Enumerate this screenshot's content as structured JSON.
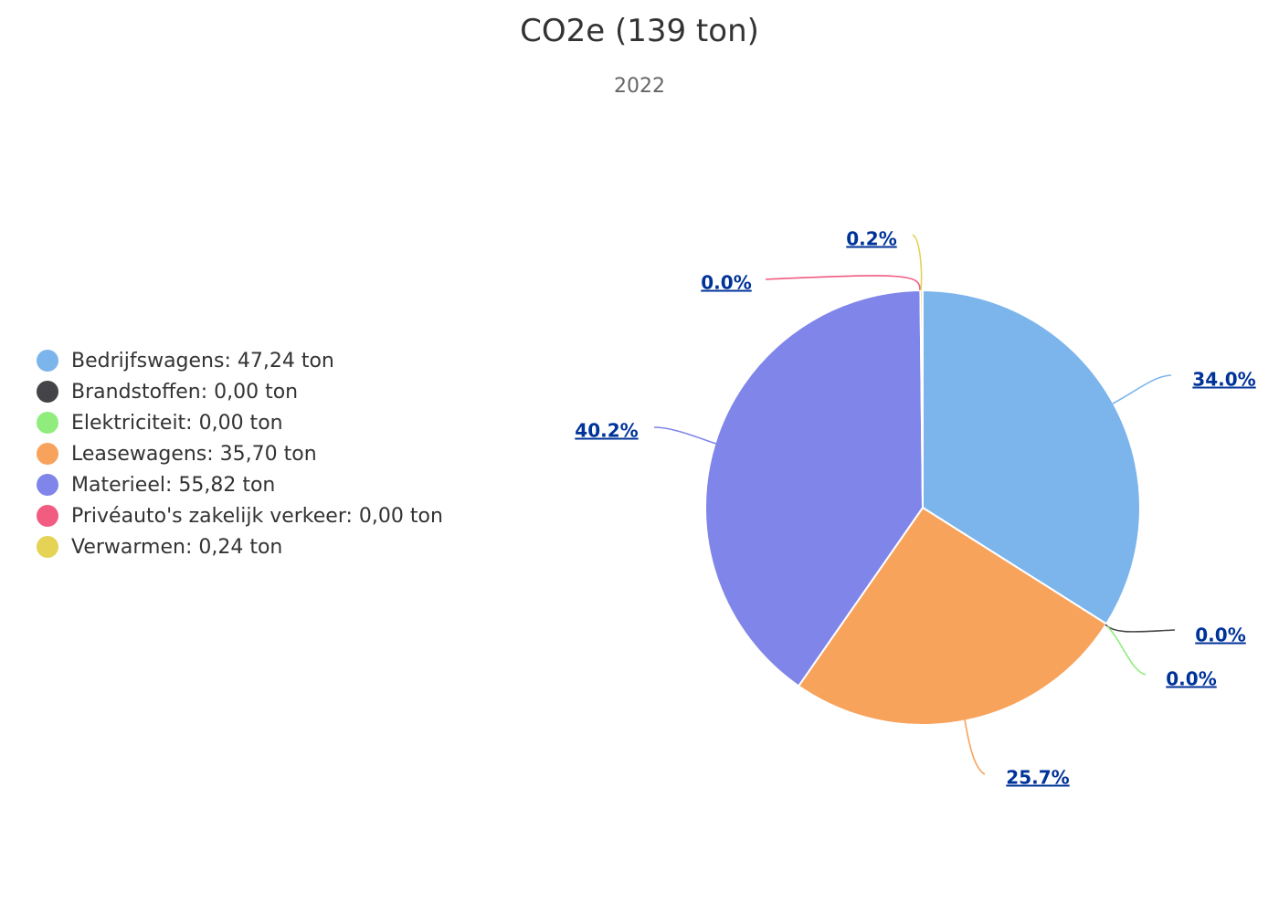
{
  "chart_data": {
    "type": "pie",
    "title": "CO2e (139 ton)",
    "subtitle": "2022",
    "legend_position": "left",
    "slices": [
      {
        "name": "Bedrijfswagens",
        "legend": "Bedrijfswagens: 47,24 ton",
        "value": 47.24,
        "label": "34.0%",
        "color": "#7cb5ec"
      },
      {
        "name": "Brandstoffen",
        "legend": "Brandstoffen: 0,00 ton",
        "value": 0.0,
        "label": "0.0%",
        "color": "#434348"
      },
      {
        "name": "Elektriciteit",
        "legend": "Elektriciteit: 0,00 ton",
        "value": 0.0,
        "label": "0.0%",
        "color": "#90ed7d"
      },
      {
        "name": "Leasewagens",
        "legend": "Leasewagens: 35,70 ton",
        "value": 35.7,
        "label": "25.7%",
        "color": "#f7a35c"
      },
      {
        "name": "Materieel",
        "legend": "Materieel: 55,82 ton",
        "value": 55.82,
        "label": "40.2%",
        "color": "#8085e9"
      },
      {
        "name": "Privéauto's zakelijk verkeer",
        "legend": "Privéauto's zakelijk verkeer: 0,00 ton",
        "value": 0.0,
        "label": "0.0%",
        "color": "#f15c80"
      },
      {
        "name": "Verwarmen",
        "legend": "Verwarmen: 0,24 ton",
        "value": 0.24,
        "label": "0.2%",
        "color": "#e4d354"
      }
    ]
  }
}
